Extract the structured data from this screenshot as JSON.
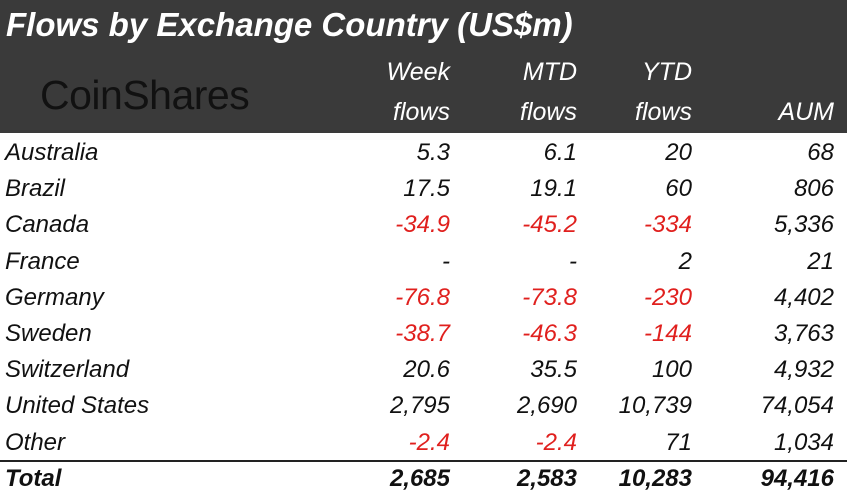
{
  "title": "Flows by Exchange Country (US$m)",
  "logo_text": "CoinShares",
  "colors": {
    "header_bg": "#3a3a3a",
    "negative": "#e0201e",
    "text": "#111111"
  },
  "chart_data": {
    "type": "table",
    "title": "Flows by Exchange Country (US$m)",
    "columns": [
      {
        "line1": "Week",
        "line2": "flows"
      },
      {
        "line1": "MTD",
        "line2": "flows"
      },
      {
        "line1": "YTD",
        "line2": "flows"
      },
      {
        "line1": "",
        "line2": "AUM"
      }
    ],
    "rows": [
      {
        "country": "Australia",
        "cells": [
          {
            "text": "5.3",
            "neg": false
          },
          {
            "text": "6.1",
            "neg": false
          },
          {
            "text": "20",
            "neg": false
          },
          {
            "text": "68",
            "neg": false
          }
        ]
      },
      {
        "country": "Brazil",
        "cells": [
          {
            "text": "17.5",
            "neg": false
          },
          {
            "text": "19.1",
            "neg": false
          },
          {
            "text": "60",
            "neg": false
          },
          {
            "text": "806",
            "neg": false
          }
        ]
      },
      {
        "country": "Canada",
        "cells": [
          {
            "text": "-34.9",
            "neg": true
          },
          {
            "text": "-45.2",
            "neg": true
          },
          {
            "text": "-334",
            "neg": true
          },
          {
            "text": "5,336",
            "neg": false
          }
        ]
      },
      {
        "country": "France",
        "cells": [
          {
            "text": "-",
            "neg": false
          },
          {
            "text": "-",
            "neg": false
          },
          {
            "text": "2",
            "neg": false
          },
          {
            "text": "21",
            "neg": false
          }
        ]
      },
      {
        "country": "Germany",
        "cells": [
          {
            "text": "-76.8",
            "neg": true
          },
          {
            "text": "-73.8",
            "neg": true
          },
          {
            "text": "-230",
            "neg": true
          },
          {
            "text": "4,402",
            "neg": false
          }
        ]
      },
      {
        "country": "Sweden",
        "cells": [
          {
            "text": "-38.7",
            "neg": true
          },
          {
            "text": "-46.3",
            "neg": true
          },
          {
            "text": "-144",
            "neg": true
          },
          {
            "text": "3,763",
            "neg": false
          }
        ]
      },
      {
        "country": "Switzerland",
        "cells": [
          {
            "text": "20.6",
            "neg": false
          },
          {
            "text": "35.5",
            "neg": false
          },
          {
            "text": "100",
            "neg": false
          },
          {
            "text": "4,932",
            "neg": false
          }
        ]
      },
      {
        "country": "United States",
        "cells": [
          {
            "text": "2,795",
            "neg": false
          },
          {
            "text": "2,690",
            "neg": false
          },
          {
            "text": "10,739",
            "neg": false
          },
          {
            "text": "74,054",
            "neg": false
          }
        ]
      },
      {
        "country": "Other",
        "cells": [
          {
            "text": "-2.4",
            "neg": true
          },
          {
            "text": "-2.4",
            "neg": true
          },
          {
            "text": "71",
            "neg": false
          },
          {
            "text": "1,034",
            "neg": false
          }
        ]
      }
    ],
    "total": {
      "label": "Total",
      "cells": [
        {
          "text": "2,685",
          "neg": false
        },
        {
          "text": "2,583",
          "neg": false
        },
        {
          "text": "10,283",
          "neg": false
        },
        {
          "text": "94,416",
          "neg": false
        }
      ]
    }
  }
}
